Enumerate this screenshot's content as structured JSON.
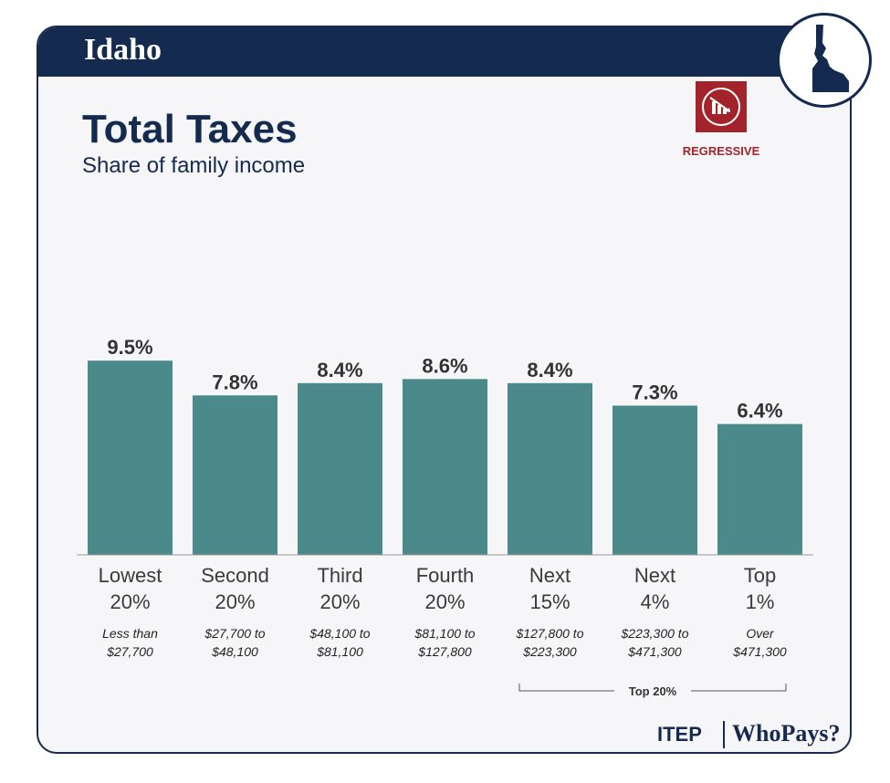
{
  "header": {
    "state_name": "Idaho"
  },
  "badge": {
    "icon": "idaho-state-outline-icon"
  },
  "rating": {
    "label": "REGRESSIVE",
    "icon": "declining-bars-icon",
    "color": "#a3232b"
  },
  "colors": {
    "bar": "#4a8a8a",
    "navy": "#142b4f"
  },
  "chart_data": {
    "type": "bar",
    "title": "Total Taxes",
    "subtitle": "Share of family income",
    "ylim": [
      0,
      10
    ],
    "categories": [
      {
        "name_line1": "Lowest",
        "name_line2": "20%",
        "range_line1": "Less than",
        "range_line2": "$27,700"
      },
      {
        "name_line1": "Second",
        "name_line2": "20%",
        "range_line1": "$27,700 to",
        "range_line2": "$48,100"
      },
      {
        "name_line1": "Third",
        "name_line2": "20%",
        "range_line1": "$48,100 to",
        "range_line2": "$81,100"
      },
      {
        "name_line1": "Fourth",
        "name_line2": "20%",
        "range_line1": "$81,100 to",
        "range_line2": "$127,800"
      },
      {
        "name_line1": "Next",
        "name_line2": "15%",
        "range_line1": "$127,800 to",
        "range_line2": "$223,300"
      },
      {
        "name_line1": "Next",
        "name_line2": "4%",
        "range_line1": "$223,300 to",
        "range_line2": "$471,300"
      },
      {
        "name_line1": "Top",
        "name_line2": "1%",
        "range_line1": "Over",
        "range_line2": "$471,300"
      }
    ],
    "values": [
      9.5,
      7.8,
      8.4,
      8.6,
      8.4,
      7.3,
      6.4
    ],
    "value_labels": [
      "9.5%",
      "7.8%",
      "8.4%",
      "8.6%",
      "8.4%",
      "7.3%",
      "6.4%"
    ],
    "bracket": {
      "label": "Top 20%",
      "from_index": 4,
      "to_index": 6
    }
  },
  "footer": {
    "org": "ITEP",
    "product": "WhoPays?"
  }
}
